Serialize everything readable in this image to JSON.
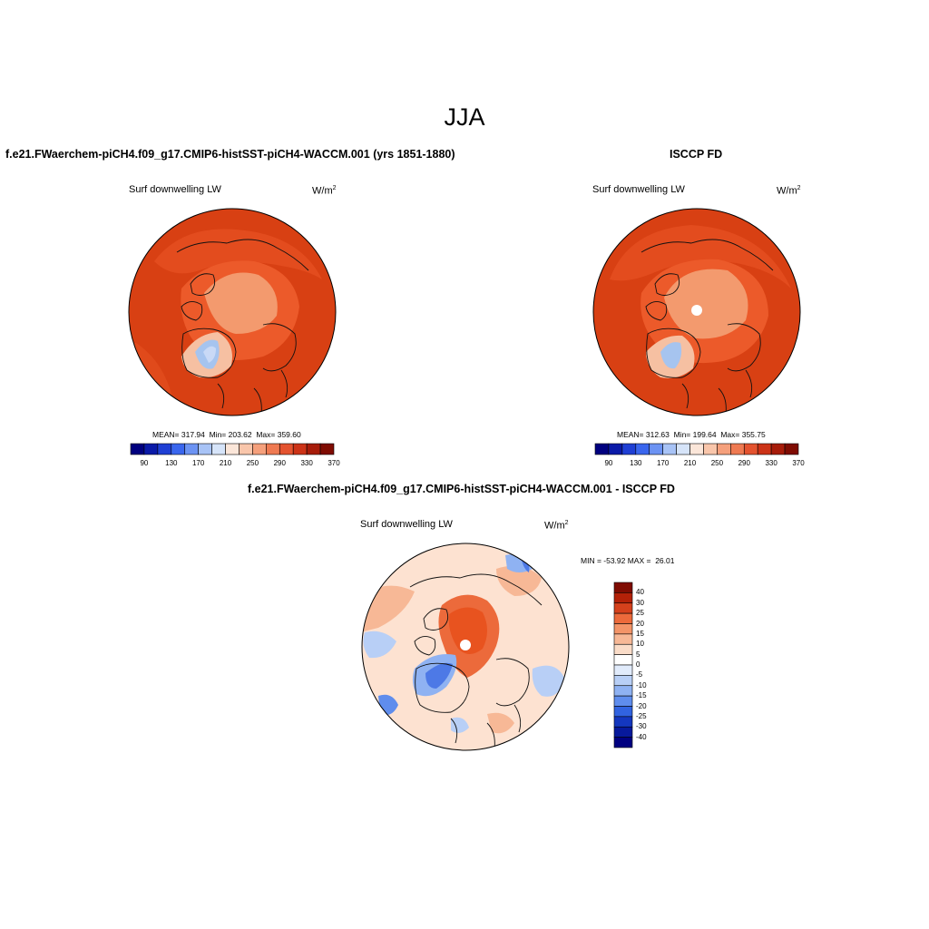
{
  "title": "JJA",
  "panels": {
    "model": {
      "title": "f.e21.FWaerchem-piCH4.f09_g17.CMIP6-histSST-piCH4-WACCM.001 (yrs 1851-1880)",
      "variable": "Surf downwelling LW",
      "units": "W/m",
      "units_sup": "2",
      "stats": "MEAN= 317.94  Min= 203.62  Max= 359.60"
    },
    "obs": {
      "title": "ISCCP FD",
      "variable": "Surf downwelling LW",
      "units": "W/m",
      "units_sup": "2",
      "stats": "MEAN= 312.63  Min= 199.64  Max= 355.75"
    },
    "diff": {
      "title": "f.e21.FWaerchem-piCH4.f09_g17.CMIP6-histSST-piCH4-WACCM.001 - ISCCP FD",
      "variable": "Surf downwelling LW",
      "units": "W/m",
      "units_sup": "2",
      "stats": "MIN = -53.92 MAX =  26.01"
    }
  },
  "colorbars": {
    "abs": {
      "colors": [
        "#00007f",
        "#0a1aa8",
        "#1f3fd4",
        "#3a66ee",
        "#6c93f3",
        "#a8c3f6",
        "#d6e4f9",
        "#fbe6d9",
        "#f9c6ab",
        "#f5a07c",
        "#ef7a52",
        "#e4532f",
        "#cc3317",
        "#a71c0a",
        "#7f0c02"
      ],
      "labels": [
        "90",
        "130",
        "170",
        "210",
        "250",
        "290",
        "330",
        "370"
      ]
    },
    "diff": {
      "colors": [
        "#7f0c02",
        "#b32108",
        "#d5411c",
        "#ec6a3b",
        "#f39468",
        "#f7b896",
        "#fadcc8",
        "#ffffff",
        "#e1ebfb",
        "#b8cff6",
        "#8fb2f2",
        "#5f8ded",
        "#3163e0",
        "#1437bf",
        "#07199c",
        "#000080"
      ],
      "labels": [
        "40",
        "30",
        "25",
        "20",
        "15",
        "10",
        "5",
        "0",
        "-5",
        "-10",
        "-15",
        "-20",
        "-25",
        "-30",
        "-40"
      ]
    }
  },
  "map_colors": {
    "ocean_high": "#d84013",
    "mid": "#ec5a2a",
    "ice_cap": "#f39a6e",
    "greenland_edge": "#f6c0a2",
    "greenland_core": "#a6c4ef",
    "diff_neutral": "#fde2d1",
    "diff_pos_strong": "#e8531f",
    "diff_neg": "#4d79e6"
  }
}
